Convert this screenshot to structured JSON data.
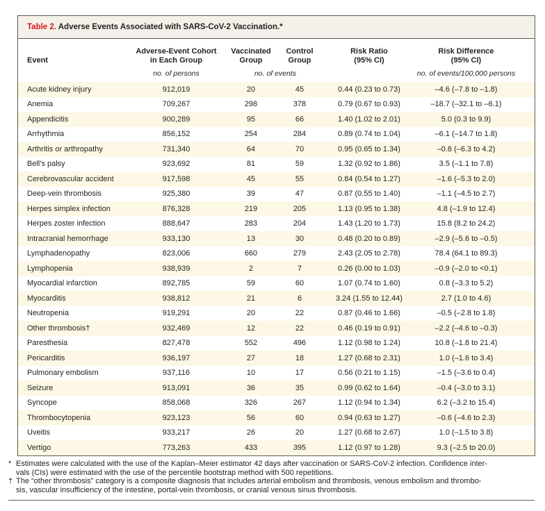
{
  "colors": {
    "accent_red": "#d6181f",
    "row_cream": "#fdf8e5",
    "title_bar_bg": "#f4f1ea",
    "border_gray": "#5e5c55",
    "text": "#262220"
  },
  "table": {
    "title_label": "Table 2.",
    "title": "Adverse Events Associated with SARS-CoV-2 Vaccination.*",
    "columns": {
      "event": "Event",
      "cohort": "Adverse-Event Cohort\nin Each Group",
      "vaccinated": "Vaccinated\nGroup",
      "control": "Control\nGroup",
      "risk_ratio": "Risk Ratio\n(95% CI)",
      "risk_difference": "Risk Difference\n(95% CI)"
    },
    "units": {
      "cohort": "no. of persons",
      "events": "no. of events",
      "risk_difference": "no. of events/100,000 persons"
    },
    "rows": [
      {
        "event": "Acute kidney injury",
        "cohort": "912,019",
        "vaccinated": "20",
        "control": "45",
        "risk_ratio": "0.44 (0.23 to 0.73)",
        "risk_difference": "–4.6 (–7.8 to –1.8)"
      },
      {
        "event": "Anemia",
        "cohort": "709,267",
        "vaccinated": "298",
        "control": "378",
        "risk_ratio": "0.79 (0.67 to 0.93)",
        "risk_difference": "–18.7 (–32.1 to –6.1)"
      },
      {
        "event": "Appendicitis",
        "cohort": "900,289",
        "vaccinated": "95",
        "control": "66",
        "risk_ratio": "1.40 (1.02 to 2.01)",
        "risk_difference": "5.0 (0.3 to 9.9)"
      },
      {
        "event": "Arrhythmia",
        "cohort": "856,152",
        "vaccinated": "254",
        "control": "284",
        "risk_ratio": "0.89 (0.74 to 1.04)",
        "risk_difference": "–6.1 (–14.7 to 1.8)"
      },
      {
        "event": "Arthritis or arthropathy",
        "cohort": "731,340",
        "vaccinated": "64",
        "control": "70",
        "risk_ratio": "0.95 (0.65 to 1.34)",
        "risk_difference": "–0.8 (–6.3 to 4.2)"
      },
      {
        "event": "Bell's palsy",
        "cohort": "923,692",
        "vaccinated": "81",
        "control": "59",
        "risk_ratio": "1.32 (0.92 to 1.86)",
        "risk_difference": "3.5 (–1.1 to 7.8)"
      },
      {
        "event": "Cerebrovascular accident",
        "cohort": "917,598",
        "vaccinated": "45",
        "control": "55",
        "risk_ratio": "0.84 (0.54 to 1.27)",
        "risk_difference": "–1.6 (–5.3 to 2.0)"
      },
      {
        "event": "Deep-vein thrombosis",
        "cohort": "925,380",
        "vaccinated": "39",
        "control": "47",
        "risk_ratio": "0.87 (0.55 to 1.40)",
        "risk_difference": "–1.1 (–4.5 to 2.7)"
      },
      {
        "event": "Herpes simplex infection",
        "cohort": "876,328",
        "vaccinated": "219",
        "control": "205",
        "risk_ratio": "1.13 (0.95 to 1.38)",
        "risk_difference": "4.8 (–1.9 to 12.4)"
      },
      {
        "event": "Herpes zoster infection",
        "cohort": "888,647",
        "vaccinated": "283",
        "control": "204",
        "risk_ratio": "1.43 (1.20 to 1.73)",
        "risk_difference": "15.8 (8.2 to 24.2)"
      },
      {
        "event": "Intracranial hemorrhage",
        "cohort": "933,130",
        "vaccinated": "13",
        "control": "30",
        "risk_ratio": "0.48 (0.20 to 0.89)",
        "risk_difference": "–2.9 (–5.6 to –0.5)"
      },
      {
        "event": "Lymphadenopathy",
        "cohort": "823,006",
        "vaccinated": "660",
        "control": "279",
        "risk_ratio": "2.43 (2.05 to 2.78)",
        "risk_difference": "78.4 (64.1 to 89.3)"
      },
      {
        "event": "Lymphopenia",
        "cohort": "938,939",
        "vaccinated": "2",
        "control": "7",
        "risk_ratio": "0.26 (0.00 to 1.03)",
        "risk_difference": "–0.9 (–2.0 to <0.1)"
      },
      {
        "event": "Myocardial infarction",
        "cohort": "892,785",
        "vaccinated": "59",
        "control": "60",
        "risk_ratio": "1.07 (0.74 to 1.60)",
        "risk_difference": "0.8 (–3.3 to 5.2)"
      },
      {
        "event": "Myocarditis",
        "cohort": "938,812",
        "vaccinated": "21",
        "control": "6",
        "risk_ratio": "3.24 (1.55 to 12.44)",
        "risk_difference": "2.7 (1.0 to 4.6)"
      },
      {
        "event": "Neutropenia",
        "cohort": "919,291",
        "vaccinated": "20",
        "control": "22",
        "risk_ratio": "0.87 (0.46 to 1.66)",
        "risk_difference": "–0.5 (–2.8 to 1.8)"
      },
      {
        "event": "Other thrombosis†",
        "cohort": "932,469",
        "vaccinated": "12",
        "control": "22",
        "risk_ratio": "0.46 (0.19 to 0.91)",
        "risk_difference": "–2.2 (–4.6 to –0.3)"
      },
      {
        "event": "Paresthesia",
        "cohort": "827,478",
        "vaccinated": "552",
        "control": "496",
        "risk_ratio": "1.12 (0.98 to 1.24)",
        "risk_difference": "10.8 (–1.8 to 21.4)"
      },
      {
        "event": "Pericarditis",
        "cohort": "936,197",
        "vaccinated": "27",
        "control": "18",
        "risk_ratio": "1.27 (0.68 to 2.31)",
        "risk_difference": "1.0 (–1.6 to 3.4)"
      },
      {
        "event": "Pulmonary embolism",
        "cohort": "937,116",
        "vaccinated": "10",
        "control": "17",
        "risk_ratio": "0.56 (0.21 to 1.15)",
        "risk_difference": "–1.5 (–3.6 to 0.4)"
      },
      {
        "event": "Seizure",
        "cohort": "913,091",
        "vaccinated": "36",
        "control": "35",
        "risk_ratio": "0.99 (0.62 to 1.64)",
        "risk_difference": "–0.4 (–3.0 to 3.1)"
      },
      {
        "event": "Syncope",
        "cohort": "858,068",
        "vaccinated": "326",
        "control": "267",
        "risk_ratio": "1.12 (0.94 to 1.34)",
        "risk_difference": "6.2 (–3.2 to 15.4)"
      },
      {
        "event": "Thrombocytopenia",
        "cohort": "923,123",
        "vaccinated": "56",
        "control": "60",
        "risk_ratio": "0.94 (0.63 to 1.27)",
        "risk_difference": "–0.6 (–4.6 to 2.3)"
      },
      {
        "event": "Uveitis",
        "cohort": "933,217",
        "vaccinated": "26",
        "control": "20",
        "risk_ratio": "1.27 (0.68 to 2.67)",
        "risk_difference": "1.0 (–1.5 to 3.8)"
      },
      {
        "event": "Vertigo",
        "cohort": "773,263",
        "vaccinated": "433",
        "control": "395",
        "risk_ratio": "1.12 (0.97 to 1.28)",
        "risk_difference": "9.3 (–2.5 to 20.0)"
      }
    ],
    "footnotes": [
      {
        "marker": "*",
        "text": "Estimates were calculated with the use of the Kaplan–Meier estimator 42 days after vaccination or SARS-CoV-2 infection. Confidence inter-\nvals (CIs) were estimated with the use of the percentile bootstrap method with 500 repetitions."
      },
      {
        "marker": "†",
        "text": "The “other thrombosis” category is a composite diagnosis that includes arterial embolism and thrombosis, venous embolism and thrombo-\nsis, vascular insufficiency of the intestine, portal-vein thrombosis, or cranial venous sinus thrombosis."
      }
    ]
  }
}
